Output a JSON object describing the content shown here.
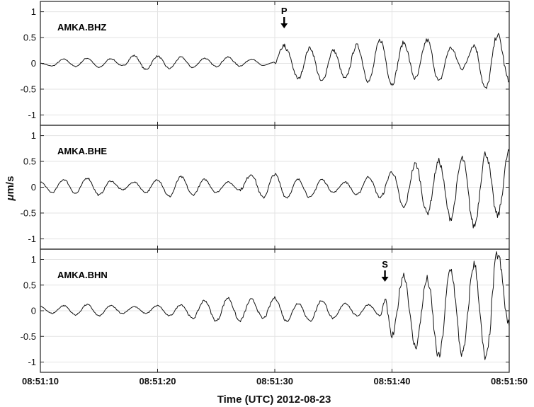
{
  "chart_data": {
    "type": "line",
    "xlabel": "Time (UTC) 2012-08-23",
    "ylabel": "μm/s",
    "ylabel_prefix": "μ",
    "ylabel_unit": "m/s",
    "xlim": [
      "08:51:10",
      "08:51:50"
    ],
    "x_ticks": [
      "08:51:10",
      "08:51:20",
      "08:51:30",
      "08:51:40",
      "08:51:50"
    ],
    "grid": true,
    "panels": [
      {
        "station": "AMKA.BHZ",
        "ylim": [
          -1.2,
          1.2
        ],
        "y_ticks": [
          "-1",
          "-0.5",
          "0",
          "0.5",
          "1"
        ],
        "pick": {
          "label": "P",
          "time": "08:51:30.8"
        },
        "series": [
          {
            "x_seconds_after_08_51_10": [
              0,
              1,
              2,
              3,
              4,
              5,
              6,
              7,
              8,
              9,
              10,
              11,
              12,
              13,
              14,
              15,
              16,
              17,
              18,
              19,
              20,
              20.8,
              21,
              22,
              23,
              24,
              25,
              26,
              27,
              28,
              29,
              30,
              31,
              32,
              33,
              34,
              35,
              36,
              37,
              38,
              39,
              40
            ],
            "values": [
              0,
              -0.05,
              0.08,
              -0.06,
              0.1,
              -0.08,
              0.09,
              -0.05,
              0.15,
              -0.12,
              0.14,
              -0.1,
              0.12,
              -0.08,
              0.1,
              -0.06,
              0.12,
              -0.05,
              0.08,
              -0.04,
              0.02,
              0.35,
              0.25,
              -0.3,
              0.3,
              -0.35,
              0.25,
              -0.3,
              0.35,
              -0.35,
              0.45,
              -0.4,
              0.4,
              -0.3,
              0.45,
              -0.35,
              0.3,
              -0.1,
              0.35,
              -0.5,
              0.55,
              -0.35
            ]
          }
        ]
      },
      {
        "station": "AMKA.BHE",
        "ylim": [
          -1.2,
          1.2
        ],
        "y_ticks": [
          "-1",
          "-0.5",
          "0",
          "0.5",
          "1"
        ],
        "pick": null,
        "series": [
          {
            "x_seconds_after_08_51_10": [
              0,
              1,
              2,
              3,
              4,
              5,
              6,
              7,
              8,
              9,
              10,
              11,
              12,
              13,
              14,
              15,
              16,
              17,
              18,
              19,
              20,
              21,
              22,
              23,
              24,
              25,
              26,
              27,
              28,
              29,
              30,
              31,
              32,
              33,
              34,
              35,
              36,
              37,
              38,
              39,
              40
            ],
            "values": [
              0.1,
              -0.1,
              0.15,
              -0.12,
              0.18,
              -0.15,
              0.12,
              -0.05,
              0.1,
              -0.1,
              0.15,
              -0.18,
              0.2,
              -0.15,
              0.15,
              -0.1,
              0.1,
              -0.05,
              0.25,
              -0.2,
              0.25,
              -0.2,
              0.15,
              -0.2,
              0.15,
              -0.1,
              0.1,
              -0.15,
              0.2,
              -0.2,
              0.3,
              -0.4,
              0.45,
              -0.5,
              0.5,
              -0.6,
              0.55,
              -0.75,
              0.65,
              -0.55,
              0.7
            ]
          }
        ]
      },
      {
        "station": "AMKA.BHN",
        "ylim": [
          -1.2,
          1.2
        ],
        "y_ticks": [
          "-1",
          "-0.5",
          "0",
          "0.5",
          "1"
        ],
        "pick": {
          "label": "S",
          "time": "08:51:39.4"
        },
        "series": [
          {
            "x_seconds_after_08_51_10": [
              0,
              1,
              2,
              3,
              4,
              5,
              6,
              7,
              8,
              9,
              10,
              11,
              12,
              13,
              14,
              15,
              16,
              17,
              18,
              19,
              20,
              21,
              22,
              23,
              24,
              25,
              26,
              27,
              28,
              29,
              29.4,
              30,
              31,
              32,
              33,
              34,
              35,
              36,
              37,
              38,
              39,
              40
            ],
            "values": [
              0.08,
              -0.05,
              0.1,
              -0.08,
              0.12,
              -0.1,
              0.1,
              -0.05,
              0.08,
              -0.05,
              0.1,
              -0.1,
              0.12,
              -0.15,
              0.2,
              -0.2,
              0.25,
              -0.2,
              0.22,
              -0.15,
              0.25,
              -0.2,
              0.15,
              -0.2,
              0.2,
              -0.15,
              0.15,
              -0.1,
              0.12,
              -0.1,
              0.2,
              -0.5,
              0.7,
              -0.7,
              0.6,
              -0.9,
              0.8,
              -0.85,
              0.9,
              -0.95,
              1.1,
              -0.3
            ]
          }
        ]
      }
    ]
  }
}
